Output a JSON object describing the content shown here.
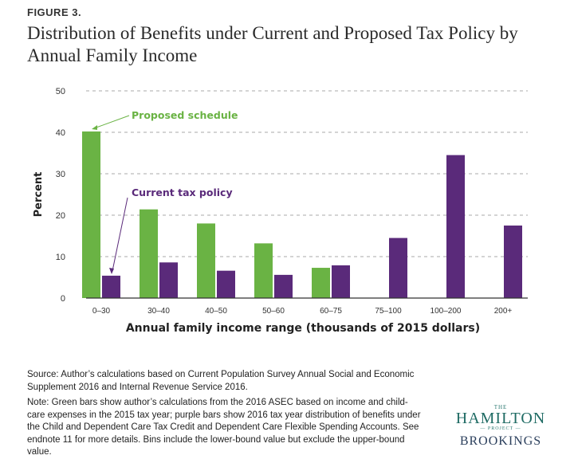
{
  "figure_label": "FIGURE 3.",
  "title": "Distribution of Benefits under Current and Proposed Tax Policy by Annual Family Income",
  "chart_data": {
    "type": "bar",
    "title": "Distribution of Benefits under Current and Proposed Tax Policy by Annual Family Income",
    "xlabel": "Annual family income range (thousands of 2015 dollars)",
    "ylabel": "Percent",
    "ylim": [
      0,
      50
    ],
    "yticks": [
      0,
      10,
      20,
      30,
      40,
      50
    ],
    "grid": true,
    "categories": [
      "0–30",
      "30–40",
      "40–50",
      "50–60",
      "60–75",
      "75–100",
      "100–200",
      "200+"
    ],
    "series": [
      {
        "name": "Proposed schedule",
        "color": "#6ab344",
        "values": [
          40.2,
          21.4,
          18.0,
          13.2,
          7.3,
          null,
          null,
          null
        ]
      },
      {
        "name": "Current tax policy",
        "color": "#5a2a7a",
        "values": [
          5.4,
          8.6,
          6.6,
          5.6,
          7.9,
          14.5,
          34.5,
          17.5
        ]
      }
    ],
    "annotations": [
      "Proposed schedule",
      "Current tax policy"
    ]
  },
  "source": "Source: Author’s calculations based on Current Population Survey Annual Social and Economic Supplement 2016 and Internal Revenue Service 2016.",
  "note": "Note: Green bars show author’s calculations from the 2016 ASEC based on income and child-care expenses in the 2015 tax year; purple bars show 2016 tax year distribution of benefits under the Child and Dependent Care Tax Credit and Dependent Care Flexible Spending Accounts. See endnote 11 for more details. Bins include the lower-bound value but exclude the upper-bound value.",
  "logo": {
    "the": "THE",
    "hamilton": "HAMILTON",
    "project": "PROJECT",
    "brookings": "BROOKINGS"
  }
}
